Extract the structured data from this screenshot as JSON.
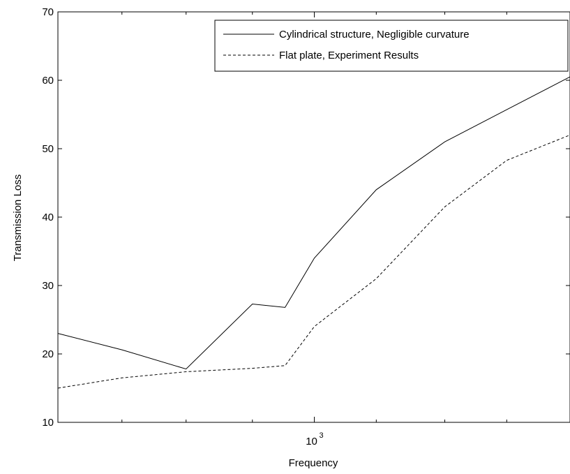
{
  "chart_data": {
    "type": "line",
    "xscale": "log",
    "xlabel": "Frequency",
    "ylabel": "Transmission Loss",
    "ylim": [
      10,
      70
    ],
    "yticks": [
      10,
      20,
      30,
      40,
      50,
      60,
      70
    ],
    "xlim": [
      397,
      2512
    ],
    "xticks": [
      {
        "value": 1000,
        "base": "10",
        "exp": "3"
      }
    ],
    "x_minor_ticks": [
      500,
      630,
      800,
      1250,
      1600,
      2000
    ],
    "grid": false,
    "legend_position": "top-right",
    "series": [
      {
        "name": "Cylindrical structure, Negligible curvature",
        "style": "solid",
        "color": "#000000",
        "x": [
          397,
          500,
          630,
          800,
          900,
          1000,
          1250,
          1600,
          2000,
          2512
        ],
        "y": [
          23.0,
          20.6,
          17.8,
          27.3,
          26.8,
          34.0,
          44.0,
          51.0,
          55.7,
          60.5
        ]
      },
      {
        "name": "Flat plate, Experiment Results",
        "style": "dashed",
        "color": "#000000",
        "x": [
          397,
          500,
          630,
          800,
          900,
          1000,
          1250,
          1600,
          2000,
          2512
        ],
        "y": [
          15.0,
          16.5,
          17.4,
          17.9,
          18.3,
          24.0,
          31.0,
          41.5,
          48.3,
          52.0
        ]
      }
    ]
  }
}
